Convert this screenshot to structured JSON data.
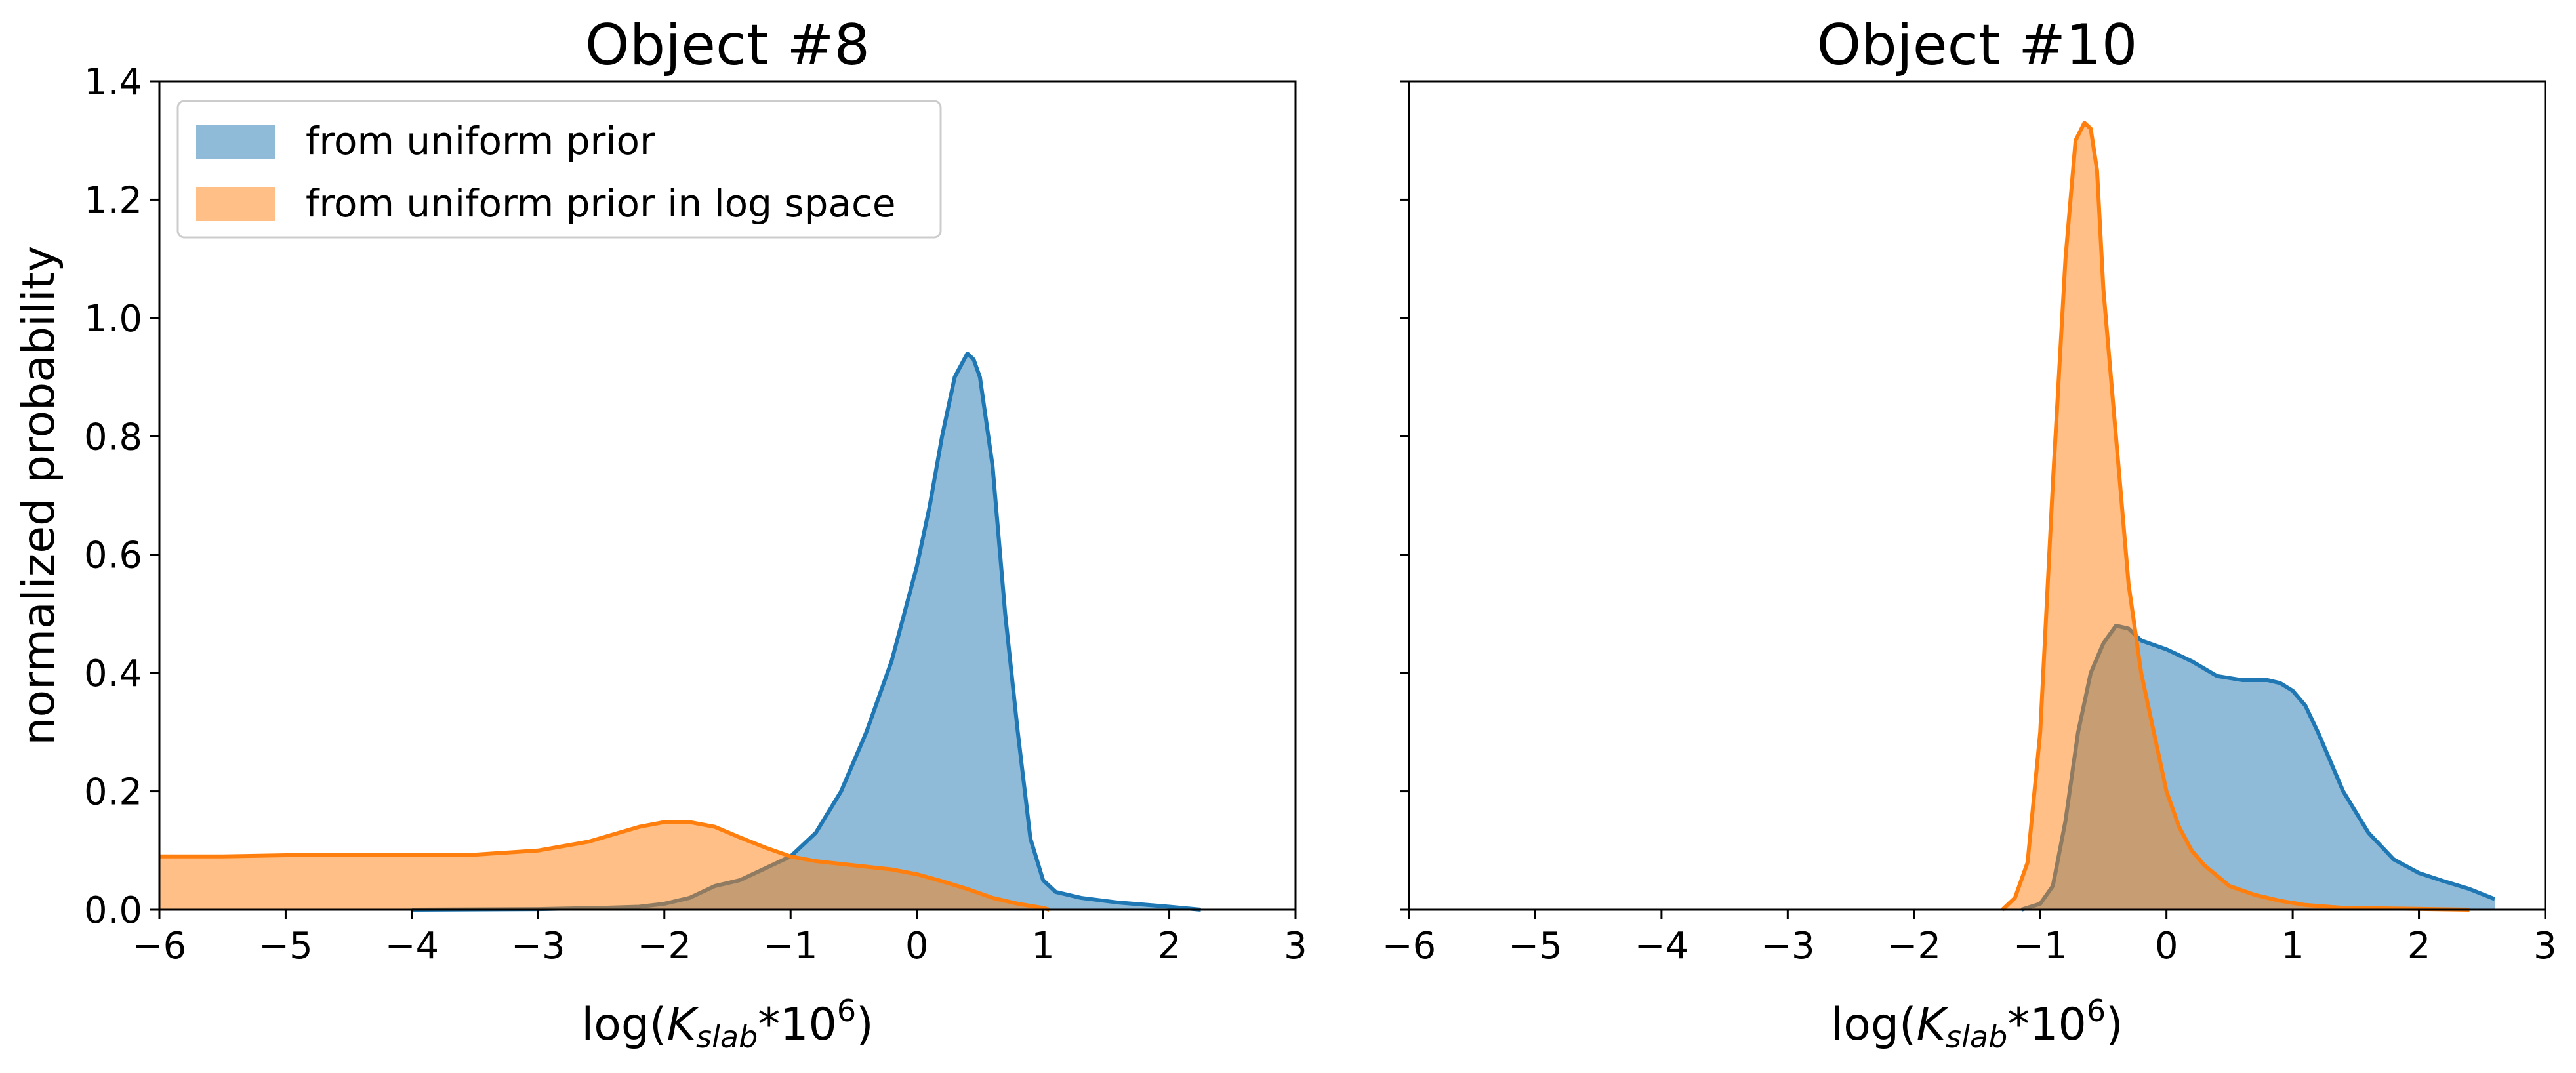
{
  "chart_data": [
    {
      "type": "area",
      "title": "Object #8",
      "xlabel": {
        "prefix": "log(",
        "symbol": "K",
        "subscript": "slab",
        "mid": "*10",
        "superscript": "6",
        "suffix": ")"
      },
      "ylabel": "normalized probability",
      "xlim": [
        -6,
        3
      ],
      "ylim": [
        0,
        1.4
      ],
      "xticks": [
        -6,
        -5,
        -4,
        -3,
        -2,
        -1,
        0,
        1,
        2,
        3
      ],
      "yticks": [
        0.0,
        0.2,
        0.4,
        0.6,
        0.8,
        1.0,
        1.2,
        1.4
      ],
      "xtick_labels": [
        "−6",
        "−5",
        "−4",
        "−3",
        "−2",
        "−1",
        "0",
        "1",
        "2",
        "3"
      ],
      "ytick_labels": [
        "0.0",
        "0.2",
        "0.4",
        "0.6",
        "0.8",
        "1.0",
        "1.2",
        "1.4"
      ],
      "show_yticklabels": true,
      "legend": {
        "placement": "top-left",
        "entries": [
          "from uniform prior",
          "from uniform prior in log space"
        ]
      },
      "series": [
        {
          "name": "from uniform prior",
          "color": "#1f77b4",
          "points": [
            [
              -4,
              0
            ],
            [
              -3,
              0.001
            ],
            [
              -2.5,
              0.003
            ],
            [
              -2.2,
              0.005
            ],
            [
              -2,
              0.01
            ],
            [
              -1.8,
              0.02
            ],
            [
              -1.6,
              0.04
            ],
            [
              -1.4,
              0.05
            ],
            [
              -1.2,
              0.07
            ],
            [
              -1.0,
              0.09
            ],
            [
              -0.8,
              0.13
            ],
            [
              -0.6,
              0.2
            ],
            [
              -0.4,
              0.3
            ],
            [
              -0.2,
              0.42
            ],
            [
              0,
              0.58
            ],
            [
              0.1,
              0.68
            ],
            [
              0.2,
              0.8
            ],
            [
              0.3,
              0.9
            ],
            [
              0.4,
              0.94
            ],
            [
              0.45,
              0.93
            ],
            [
              0.5,
              0.9
            ],
            [
              0.6,
              0.75
            ],
            [
              0.7,
              0.5
            ],
            [
              0.8,
              0.3
            ],
            [
              0.9,
              0.12
            ],
            [
              1.0,
              0.05
            ],
            [
              1.1,
              0.03
            ],
            [
              1.3,
              0.02
            ],
            [
              1.6,
              0.012
            ],
            [
              2.0,
              0.005
            ],
            [
              2.25,
              0
            ]
          ]
        },
        {
          "name": "from uniform prior in log space",
          "color": "#ff7f0e",
          "points": [
            [
              -6,
              0.09
            ],
            [
              -5.5,
              0.09
            ],
            [
              -5,
              0.092
            ],
            [
              -4.5,
              0.093
            ],
            [
              -4,
              0.092
            ],
            [
              -3.5,
              0.093
            ],
            [
              -3,
              0.1
            ],
            [
              -2.6,
              0.115
            ],
            [
              -2.2,
              0.14
            ],
            [
              -2.0,
              0.148
            ],
            [
              -1.8,
              0.148
            ],
            [
              -1.6,
              0.14
            ],
            [
              -1.4,
              0.122
            ],
            [
              -1.2,
              0.105
            ],
            [
              -1.0,
              0.09
            ],
            [
              -0.8,
              0.082
            ],
            [
              -0.5,
              0.075
            ],
            [
              -0.2,
              0.068
            ],
            [
              0,
              0.06
            ],
            [
              0.2,
              0.048
            ],
            [
              0.4,
              0.035
            ],
            [
              0.6,
              0.02
            ],
            [
              0.8,
              0.01
            ],
            [
              1.0,
              0.003
            ],
            [
              1.05,
              0
            ]
          ]
        }
      ]
    },
    {
      "type": "area",
      "title": "Object #10",
      "xlabel": {
        "prefix": "log(",
        "symbol": "K",
        "subscript": "slab",
        "mid": "*10",
        "superscript": "6",
        "suffix": ")"
      },
      "ylabel": "",
      "xlim": [
        -6,
        3
      ],
      "ylim": [
        0,
        1.4
      ],
      "xticks": [
        -6,
        -5,
        -4,
        -3,
        -2,
        -1,
        0,
        1,
        2,
        3
      ],
      "yticks": [
        0.0,
        0.2,
        0.4,
        0.6,
        0.8,
        1.0,
        1.2,
        1.4
      ],
      "xtick_labels": [
        "−6",
        "−5",
        "−4",
        "−3",
        "−2",
        "−1",
        "0",
        "1",
        "2",
        "3"
      ],
      "ytick_labels": [],
      "show_yticklabels": false,
      "series": [
        {
          "name": "from uniform prior",
          "color": "#1f77b4",
          "points": [
            [
              -1.15,
              0
            ],
            [
              -1.0,
              0.01
            ],
            [
              -0.9,
              0.04
            ],
            [
              -0.8,
              0.15
            ],
            [
              -0.7,
              0.3
            ],
            [
              -0.6,
              0.4
            ],
            [
              -0.5,
              0.45
            ],
            [
              -0.4,
              0.48
            ],
            [
              -0.3,
              0.475
            ],
            [
              -0.2,
              0.455
            ],
            [
              0,
              0.44
            ],
            [
              0.2,
              0.42
            ],
            [
              0.4,
              0.395
            ],
            [
              0.6,
              0.388
            ],
            [
              0.8,
              0.388
            ],
            [
              0.9,
              0.383
            ],
            [
              1.0,
              0.37
            ],
            [
              1.1,
              0.345
            ],
            [
              1.2,
              0.3
            ],
            [
              1.4,
              0.2
            ],
            [
              1.6,
              0.13
            ],
            [
              1.8,
              0.085
            ],
            [
              2.0,
              0.062
            ],
            [
              2.2,
              0.048
            ],
            [
              2.4,
              0.035
            ],
            [
              2.6,
              0.018
            ]
          ]
        },
        {
          "name": "from uniform prior in log space",
          "color": "#ff7f0e",
          "points": [
            [
              -1.3,
              0
            ],
            [
              -1.2,
              0.02
            ],
            [
              -1.1,
              0.08
            ],
            [
              -1.0,
              0.3
            ],
            [
              -0.9,
              0.72
            ],
            [
              -0.8,
              1.1
            ],
            [
              -0.72,
              1.3
            ],
            [
              -0.65,
              1.33
            ],
            [
              -0.6,
              1.32
            ],
            [
              -0.55,
              1.25
            ],
            [
              -0.5,
              1.05
            ],
            [
              -0.4,
              0.8
            ],
            [
              -0.3,
              0.55
            ],
            [
              -0.2,
              0.4
            ],
            [
              -0.1,
              0.3
            ],
            [
              0,
              0.2
            ],
            [
              0.1,
              0.14
            ],
            [
              0.2,
              0.1
            ],
            [
              0.3,
              0.075
            ],
            [
              0.5,
              0.04
            ],
            [
              0.7,
              0.025
            ],
            [
              0.9,
              0.015
            ],
            [
              1.1,
              0.008
            ],
            [
              1.4,
              0.003
            ],
            [
              1.8,
              0.002
            ],
            [
              2.4,
              0
            ]
          ]
        }
      ]
    }
  ]
}
